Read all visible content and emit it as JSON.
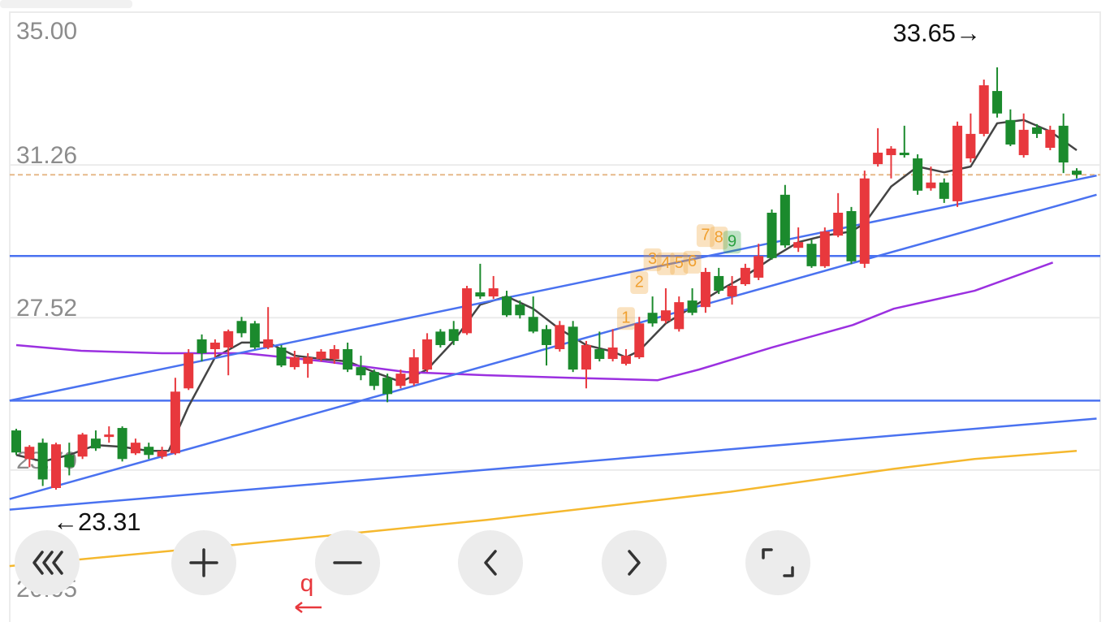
{
  "chart_data": {
    "type": "candlestick",
    "ylim": [
      20.05,
      35
    ],
    "yticks": [
      {
        "value": 35,
        "label": "35.00"
      },
      31.26,
      27.52,
      23.79,
      20.05
    ],
    "grid": true,
    "up_color": "#e8383d",
    "down_color": "#1b8a2d",
    "candles": {
      "open": [
        24.76,
        24.06,
        24.46,
        23.35,
        24.16,
        24.12,
        24.56,
        24.6,
        24.82,
        24.2,
        24.36,
        24.12,
        24.2,
        25.79,
        26.99,
        26.75,
        26.79,
        27.44,
        27.38,
        26.79,
        26.79,
        26.31,
        26.39,
        26.51,
        26.51,
        26.75,
        26.31,
        26.19,
        26.05,
        25.85,
        25.91,
        26.25,
        27.18,
        27.24,
        27.14,
        28.14,
        28.04,
        28.04,
        27.84,
        27.54,
        27.24,
        26.75,
        27.3,
        26.25,
        26.75,
        26.51,
        26.39,
        26.55,
        27.64,
        27.44,
        27.24,
        27.94,
        27.78,
        28.54,
        28.04,
        28.34,
        28.5,
        30.09,
        30.53,
        29.23,
        29.33,
        28.78,
        29.53,
        30.13,
        28.84,
        31.28,
        31.5,
        31.56,
        31.42,
        30.69,
        30.83,
        30.37,
        31.42,
        32.02,
        33.07,
        32.36,
        31.5,
        32.18,
        31.68,
        32.22,
        31.12
      ],
      "high": [
        24.8,
        24.4,
        24.56,
        24.46,
        24.46,
        24.7,
        24.76,
        24.86,
        24.86,
        24.56,
        24.46,
        24.36,
        26.05,
        26.75,
        27.11,
        26.99,
        27.23,
        27.54,
        27.44,
        27.78,
        26.85,
        26.71,
        26.65,
        26.75,
        26.85,
        26.91,
        26.59,
        26.25,
        26.15,
        26.25,
        26.75,
        27.14,
        27.24,
        27.44,
        28.3,
        28.84,
        28.54,
        28.18,
        27.94,
        28.04,
        27.34,
        27.44,
        27.44,
        26.95,
        27.18,
        27.24,
        26.75,
        27.54,
        28.04,
        28.24,
        28.04,
        28.24,
        28.74,
        28.74,
        28.54,
        28.84,
        29.33,
        30.17,
        30.77,
        29.73,
        29.43,
        29.73,
        30.57,
        30.23,
        31.12,
        32.16,
        31.72,
        32.22,
        31.52,
        31.22,
        30.93,
        32.32,
        32.52,
        33.35,
        33.65,
        32.62,
        32.52,
        32.26,
        32.22,
        32.52,
        31.18
      ],
      "low": [
        24.16,
        23.86,
        23.4,
        23.31,
        23.66,
        24.06,
        24.26,
        24.46,
        24.0,
        24.16,
        24.06,
        24.06,
        24.16,
        25.75,
        26.45,
        26.55,
        26.11,
        27.04,
        26.75,
        26.75,
        26.31,
        26.25,
        26.05,
        26.45,
        26.39,
        26.19,
        25.99,
        25.75,
        25.45,
        25.79,
        25.85,
        26.19,
        26.79,
        26.85,
        27.1,
        27.98,
        27.98,
        27.54,
        27.5,
        27.14,
        26.35,
        26.69,
        26.19,
        25.79,
        26.45,
        26.45,
        26.35,
        26.51,
        27.3,
        27.38,
        27.18,
        27.58,
        27.64,
        28.1,
        27.84,
        28.3,
        28.44,
        28.94,
        29.23,
        29.13,
        28.74,
        28.74,
        29.49,
        28.84,
        28.74,
        31.22,
        30.93,
        31.44,
        30.53,
        30.63,
        30.33,
        30.23,
        31.32,
        31.96,
        32.42,
        31.72,
        31.44,
        31.92,
        31.62,
        31.06,
        30.93
      ],
      "close": [
        24.22,
        24.36,
        23.56,
        24.42,
        23.86,
        24.66,
        24.32,
        24.66,
        24.06,
        24.46,
        24.16,
        24.26,
        25.71,
        26.65,
        26.65,
        26.91,
        27.19,
        27.14,
        26.79,
        26.99,
        26.35,
        26.55,
        26.55,
        26.69,
        26.75,
        26.25,
        26.11,
        25.85,
        25.65,
        26.15,
        26.55,
        26.99,
        26.85,
        26.95,
        28.24,
        28.04,
        28.24,
        27.58,
        27.58,
        27.18,
        26.85,
        27.34,
        26.25,
        26.85,
        26.51,
        26.79,
        26.59,
        27.38,
        27.38,
        27.7,
        27.9,
        27.64,
        28.64,
        28.18,
        28.3,
        28.74,
        29.03,
        28.98,
        29.29,
        29.37,
        28.78,
        29.63,
        30.09,
        28.9,
        30.93,
        31.56,
        31.66,
        31.5,
        30.63,
        30.83,
        30.43,
        32.22,
        32.02,
        33.21,
        32.52,
        31.76,
        32.12,
        32.02,
        32.12,
        31.32,
        31.02
      ]
    },
    "max_label": "33.65→",
    "max_index": 74,
    "min_label": "←23.31",
    "min_index": 3,
    "price_line": 31.02,
    "price_line_color": "#e6b98a",
    "hlines": [
      29.03,
      25.49
    ],
    "line_color": "#4a72f0",
    "trendlines": [
      {
        "x": [
          -0.5,
          81.5
        ],
        "values": [
          25.49,
          31.0
        ]
      },
      {
        "x": [
          -0.5,
          81.5
        ],
        "values": [
          23.08,
          30.53
        ]
      },
      {
        "x": [
          -0.5,
          81.5
        ],
        "values": [
          22.82,
          25.05
        ]
      }
    ],
    "averages": [
      {
        "color": "#444444",
        "x": [
          0,
          2,
          4,
          6,
          8,
          10,
          11.5,
          13,
          15,
          17,
          19,
          21,
          23,
          25,
          27,
          29,
          31,
          33,
          35,
          37,
          39,
          41,
          43,
          45,
          46,
          47,
          49,
          51,
          53,
          55,
          57,
          59,
          61,
          63,
          64,
          66,
          68,
          70,
          72,
          74,
          76,
          78,
          80
        ],
        "values": [
          24.16,
          24.0,
          24.16,
          24.4,
          24.36,
          24.26,
          24.26,
          25.35,
          26.55,
          26.91,
          26.91,
          26.59,
          26.51,
          26.45,
          26.19,
          25.95,
          26.25,
          26.95,
          27.84,
          28.04,
          27.74,
          27.24,
          26.85,
          26.69,
          26.55,
          26.71,
          27.38,
          27.78,
          28.18,
          28.54,
          28.98,
          29.37,
          29.53,
          29.63,
          29.83,
          30.73,
          31.22,
          31.08,
          31.22,
          32.28,
          32.36,
          32.08,
          31.62
        ]
      },
      {
        "color": "#9b30e0",
        "x": [
          0,
          4.9,
          11.0,
          17.2,
          23.3,
          29.4,
          35.5,
          41.7,
          48.4,
          51.5,
          57.0,
          63.1,
          66.2,
          72.3,
          78.2
        ],
        "values": [
          26.85,
          26.71,
          26.65,
          26.65,
          26.45,
          26.19,
          26.11,
          26.05,
          25.99,
          26.25,
          26.79,
          27.34,
          27.74,
          28.18,
          28.87
        ]
      },
      {
        "color": "#f5b82e",
        "x": [
          -0.5,
          17.2,
          35.5,
          53.9,
          66.2,
          72.3,
          80
        ],
        "values": [
          21.44,
          21.98,
          22.57,
          23.26,
          23.82,
          24.06,
          24.26
        ]
      }
    ],
    "td_marks": [
      {
        "x": 46,
        "y": 27.5,
        "text": "1",
        "color": "#f0a030"
      },
      {
        "x": 47,
        "y": 28.38,
        "text": "2",
        "color": "#f0a030"
      },
      {
        "x": 48,
        "y": 28.94,
        "text": "3",
        "color": "#f0a030"
      },
      {
        "x": 49,
        "y": 28.84,
        "text": "4",
        "color": "#f0a030"
      },
      {
        "x": 50,
        "y": 28.84,
        "text": "5",
        "color": "#f0a030"
      },
      {
        "x": 51,
        "y": 28.88,
        "text": "6",
        "color": "#f0a030"
      },
      {
        "x": 52,
        "y": 29.53,
        "text": "7",
        "color": "#f0a030"
      },
      {
        "x": 53,
        "y": 29.47,
        "text": "8",
        "color": "#f0a030"
      },
      {
        "x": 54,
        "y": 29.37,
        "text": "9",
        "color": "#2aa040"
      }
    ],
    "toolbar_marker": "q"
  }
}
